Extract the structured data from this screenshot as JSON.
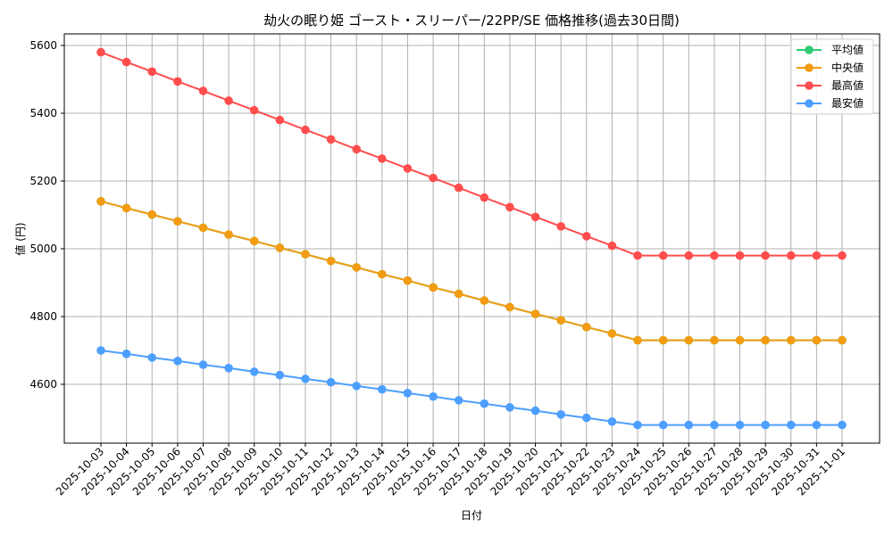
{
  "chart_data": {
    "type": "line",
    "title": "劫火の眠り姫 ゴースト・スリーパー/22PP/SE 価格推移(過去30日間)",
    "xlabel": "日付",
    "ylabel": "値 (円)",
    "ylim": [
      4420,
      5640
    ],
    "yticks": [
      4600,
      4800,
      5000,
      5200,
      5400,
      5600
    ],
    "grid": true,
    "legend_position": "upper right",
    "categories": [
      "2025-10-03",
      "2025-10-04",
      "2025-10-05",
      "2025-10-06",
      "2025-10-07",
      "2025-10-08",
      "2025-10-09",
      "2025-10-10",
      "2025-10-11",
      "2025-10-12",
      "2025-10-13",
      "2025-10-14",
      "2025-10-15",
      "2025-10-16",
      "2025-10-17",
      "2025-10-18",
      "2025-10-19",
      "2025-10-20",
      "2025-10-21",
      "2025-10-22",
      "2025-10-23",
      "2025-10-24",
      "2025-10-25",
      "2025-10-26",
      "2025-10-27",
      "2025-10-28",
      "2025-10-29",
      "2025-10-30",
      "2025-10-31",
      "2025-11-01"
    ],
    "series": [
      {
        "name": "平均値",
        "color": "#2ecc71",
        "values": [
          5140,
          5120,
          5101,
          5081,
          5062,
          5042,
          5023,
          5003,
          4984,
          4964,
          4945,
          4925,
          4906,
          4886,
          4867,
          4847,
          4828,
          4808,
          4789,
          4769,
          4750,
          4730,
          4730,
          4730,
          4730,
          4730,
          4730,
          4730,
          4730,
          4730
        ]
      },
      {
        "name": "中央値",
        "color": "#f39c12",
        "values": [
          5140,
          5120,
          5101,
          5081,
          5062,
          5042,
          5023,
          5003,
          4984,
          4964,
          4945,
          4925,
          4906,
          4886,
          4867,
          4847,
          4828,
          4808,
          4789,
          4769,
          4750,
          4730,
          4730,
          4730,
          4730,
          4730,
          4730,
          4730,
          4730,
          4730
        ]
      },
      {
        "name": "最高値",
        "color": "#ff4d4d",
        "values": [
          5580,
          5551,
          5523,
          5494,
          5466,
          5437,
          5409,
          5380,
          5351,
          5323,
          5294,
          5266,
          5237,
          5209,
          5180,
          5151,
          5123,
          5094,
          5066,
          5037,
          5009,
          4980,
          4980,
          4980,
          4980,
          4980,
          4980,
          4980,
          4980,
          4980
        ]
      },
      {
        "name": "最安値",
        "color": "#4d9fff",
        "values": [
          4700,
          4690,
          4679,
          4669,
          4658,
          4648,
          4637,
          4627,
          4616,
          4606,
          4595,
          4585,
          4574,
          4564,
          4553,
          4543,
          4532,
          4522,
          4511,
          4501,
          4490,
          4480,
          4480,
          4480,
          4480,
          4480,
          4480,
          4480,
          4480,
          4480
        ]
      }
    ]
  }
}
